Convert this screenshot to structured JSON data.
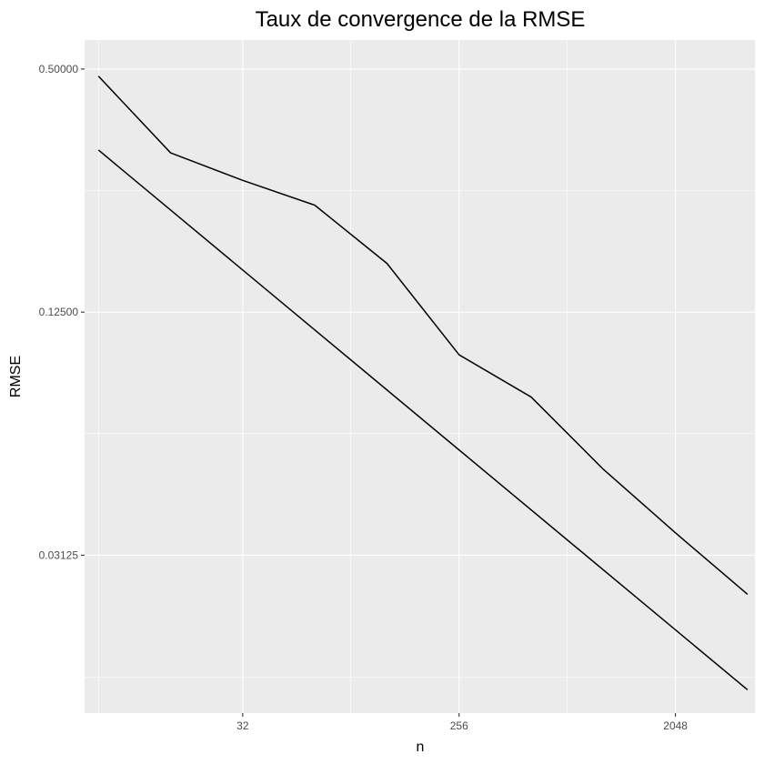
{
  "chart_data": {
    "type": "line",
    "title": "Taux de convergence de la RMSE",
    "xlabel": "n",
    "ylabel": "RMSE",
    "x_scale": "log2",
    "y_scale": "log2",
    "x_range": [
      7.0,
      4396.0
    ],
    "y_range": [
      0.0127,
      0.59
    ],
    "x_ticks": [
      32,
      256,
      2048
    ],
    "x_tick_labels": [
      "32",
      "256",
      "2048"
    ],
    "x_minor_ticks": [
      8,
      90.5,
      724,
      5793
    ],
    "y_ticks": [
      0.03125,
      0.125,
      0.5
    ],
    "y_tick_labels": [
      "0.03125",
      "0.12500",
      "0.50000"
    ],
    "y_minor_ticks": [
      0.0156,
      0.0625,
      0.25
    ],
    "grid": true,
    "background": "#ebebeb",
    "grid_color": "#ffffff",
    "line_color": "#000000",
    "series": [
      {
        "x": [
          8,
          16,
          32,
          64,
          128,
          256,
          512,
          1024,
          2048,
          4096
        ],
        "values": [
          0.48,
          0.31,
          0.265,
          0.23,
          0.165,
          0.098,
          0.077,
          0.051,
          0.0355,
          0.025
        ]
      },
      {
        "x": [
          8,
          4096
        ],
        "values": [
          0.315,
          0.0145
        ]
      }
    ]
  }
}
